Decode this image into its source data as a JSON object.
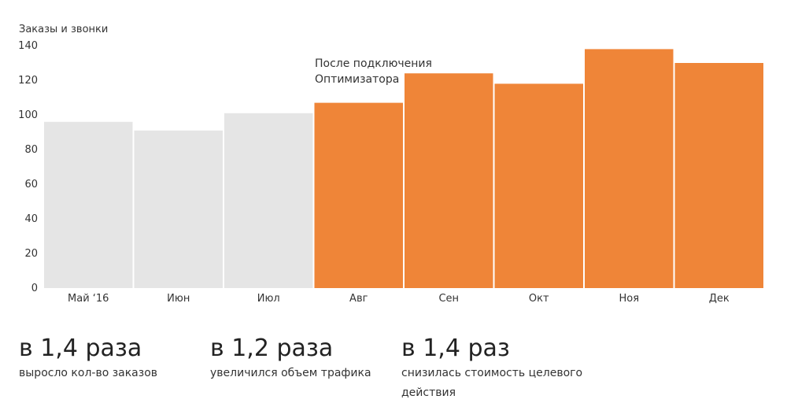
{
  "chart_data": {
    "type": "bar",
    "ylabel": "Заказы и звонки",
    "categories": [
      "Май ‘16",
      "Июн",
      "Июл",
      "Авг",
      "Сен",
      "Окт",
      "Ноя",
      "Дек"
    ],
    "values": [
      96,
      91,
      101,
      107,
      124,
      118,
      138,
      130
    ],
    "ylim": [
      0,
      140
    ],
    "yticks": [
      0,
      20,
      40,
      60,
      80,
      100,
      120,
      140
    ],
    "grid": false,
    "colors": {
      "before": "#e5e5e5",
      "after": "#ef8538"
    },
    "highlight_from_index": 3,
    "annotation": {
      "lines": [
        "После подключения",
        "Оптимизатора"
      ],
      "category": "Авг"
    }
  },
  "stats": [
    {
      "value": "в 1,4 раза",
      "caption_lines": [
        "выросло кол-во заказов"
      ]
    },
    {
      "value": "в 1,2 раза",
      "caption_lines": [
        "увеличился объем трафика"
      ]
    },
    {
      "value": "в 1,4 раз",
      "caption_lines": [
        "снизилась стоимость целевого",
        "действия"
      ]
    }
  ]
}
